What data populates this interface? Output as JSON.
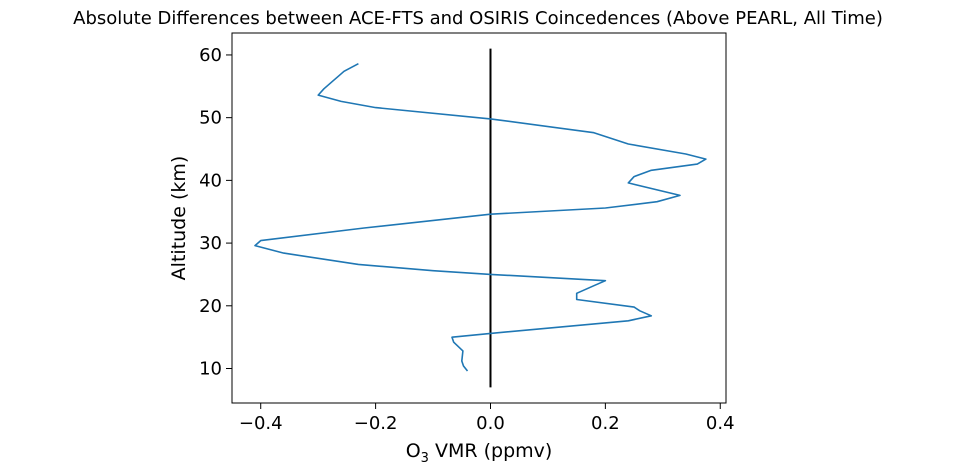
{
  "chart_data": {
    "type": "line",
    "title": "Absolute Differences between ACE-FTS and OSIRIS Coincedences (Above PEARL, All Time)",
    "xlabel_main": "O",
    "xlabel_sub": "3",
    "xlabel_rest": " VMR (ppmv)",
    "ylabel": "Altitude (km)",
    "xlim": [
      -0.45,
      0.41
    ],
    "ylim": [
      4.5,
      63.5
    ],
    "xticks": [
      -0.4,
      -0.2,
      0.0,
      0.2,
      0.4
    ],
    "xtick_labels": [
      "−0.4",
      "−0.2",
      "0.0",
      "0.2",
      "0.4"
    ],
    "yticks": [
      10,
      20,
      30,
      40,
      50,
      60
    ],
    "ytick_labels": [
      "10",
      "20",
      "30",
      "40",
      "50",
      "60"
    ],
    "grid": false,
    "series": [
      {
        "color": "#1f77b4",
        "x": [
          -0.04,
          -0.047,
          -0.05,
          -0.048,
          -0.064,
          -0.067,
          0.0,
          0.24,
          0.28,
          0.26,
          0.25,
          0.15,
          0.15,
          0.18,
          0.2,
          0.0,
          -0.1,
          -0.23,
          -0.36,
          -0.41,
          -0.4,
          -0.22,
          0.0,
          0.2,
          0.29,
          0.33,
          0.24,
          0.25,
          0.28,
          0.36,
          0.375,
          0.34,
          0.24,
          0.18,
          0.0,
          -0.2,
          -0.26,
          -0.3,
          -0.29,
          -0.275,
          -0.265,
          -0.255,
          -0.23
        ],
        "y": [
          9.6,
          10.4,
          11.2,
          12.8,
          14.2,
          15.0,
          15.6,
          17.6,
          18.4,
          19.2,
          19.8,
          21.0,
          22.0,
          23.2,
          24.0,
          25.0,
          25.6,
          26.6,
          28.4,
          29.6,
          30.4,
          32.4,
          34.6,
          35.6,
          36.6,
          37.6,
          39.6,
          40.6,
          41.6,
          42.6,
          43.4,
          44.2,
          45.8,
          47.6,
          49.8,
          51.6,
          52.6,
          53.6,
          54.6,
          55.8,
          56.6,
          57.4,
          58.6
        ]
      }
    ],
    "reference_line": {
      "x": 0.0,
      "y_from": 7.0,
      "y_to": 61.0,
      "color": "#000000"
    }
  }
}
